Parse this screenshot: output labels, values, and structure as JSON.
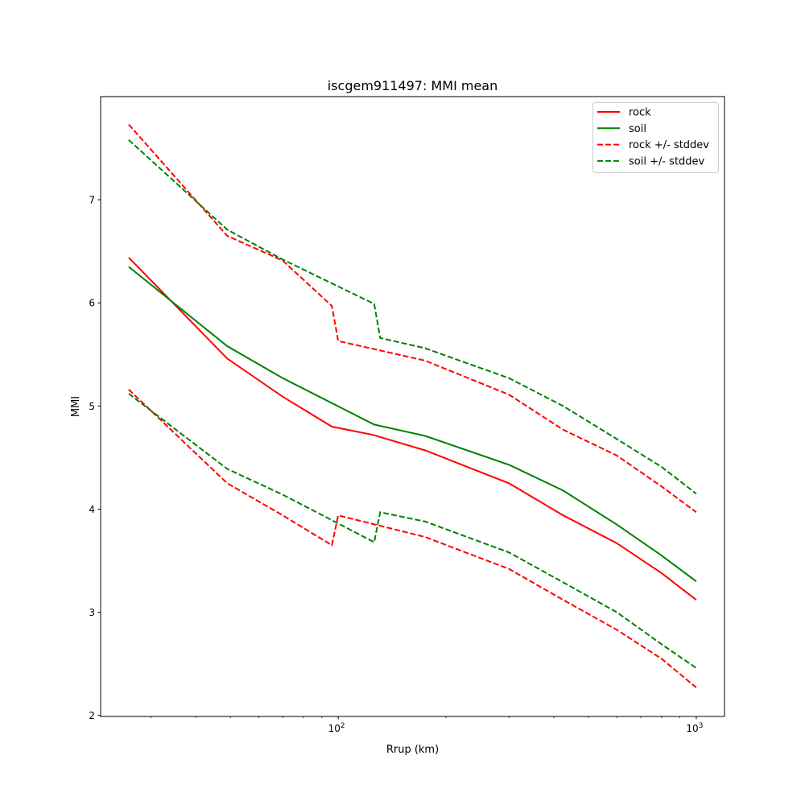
{
  "chart_data": {
    "type": "line",
    "title": "iscgem911497: MMI mean",
    "xlabel": "Rrup (km)",
    "ylabel": "MMI",
    "xscale": "log",
    "xlim": [
      21.7,
      1199
    ],
    "ylim": [
      1.99,
      8.0
    ],
    "xticks": [
      {
        "value": 100,
        "base": "10",
        "exp": "2"
      },
      {
        "value": 1000,
        "base": "10",
        "exp": "3"
      }
    ],
    "xminor": [
      30,
      40,
      50,
      60,
      70,
      80,
      90,
      200,
      300,
      400,
      500,
      600,
      700,
      800,
      900
    ],
    "yticks": [
      2,
      3,
      4,
      5,
      6,
      7
    ],
    "legend_position": "top-right",
    "series": [
      {
        "name": "rock",
        "color": "#ff0000",
        "dash": false,
        "x": [
          26,
          49,
          70,
          96,
          125,
          175,
          300,
          425,
          600,
          800,
          1000
        ],
        "y": [
          6.44,
          5.46,
          5.09,
          4.8,
          4.72,
          4.57,
          4.25,
          3.94,
          3.67,
          3.38,
          3.12
        ]
      },
      {
        "name": "soil",
        "color": "#008000",
        "dash": false,
        "x": [
          26,
          49,
          70,
          126,
          175,
          300,
          425,
          600,
          800,
          1000
        ],
        "y": [
          6.35,
          5.58,
          5.27,
          4.82,
          4.71,
          4.43,
          4.18,
          3.85,
          3.55,
          3.3
        ]
      },
      {
        "name": "rock +/- stddev",
        "color": "#ff0000",
        "dash": true,
        "x": [
          26,
          49,
          70,
          96,
          100,
          175,
          300,
          425,
          600,
          800,
          1000
        ],
        "y": [
          7.73,
          6.65,
          6.41,
          5.97,
          5.63,
          5.44,
          5.11,
          4.77,
          4.52,
          4.22,
          3.97
        ]
      },
      {
        "name": "rock +/- stddev (lower)",
        "legend": false,
        "color": "#ff0000",
        "dash": true,
        "x": [
          26,
          49,
          70,
          96,
          100,
          175,
          300,
          425,
          600,
          800,
          1000
        ],
        "y": [
          5.16,
          4.25,
          3.94,
          3.65,
          3.94,
          3.73,
          3.42,
          3.12,
          2.83,
          2.55,
          2.27
        ]
      },
      {
        "name": "soil +/- stddev",
        "color": "#008000",
        "dash": true,
        "x": [
          26,
          49,
          70,
          126,
          131,
          175,
          300,
          425,
          600,
          800,
          1000
        ],
        "y": [
          7.58,
          6.71,
          6.42,
          5.99,
          5.66,
          5.56,
          5.27,
          5.0,
          4.68,
          4.41,
          4.15
        ]
      },
      {
        "name": "soil +/- stddev (lower)",
        "legend": false,
        "color": "#008000",
        "dash": true,
        "x": [
          26,
          49,
          70,
          126,
          131,
          175,
          300,
          425,
          600,
          800,
          1000
        ],
        "y": [
          5.12,
          4.39,
          4.14,
          3.68,
          3.97,
          3.88,
          3.58,
          3.29,
          3.0,
          2.69,
          2.46
        ]
      }
    ],
    "legend": [
      "rock",
      "soil",
      "rock +/- stddev",
      "soil +/- stddev"
    ]
  }
}
